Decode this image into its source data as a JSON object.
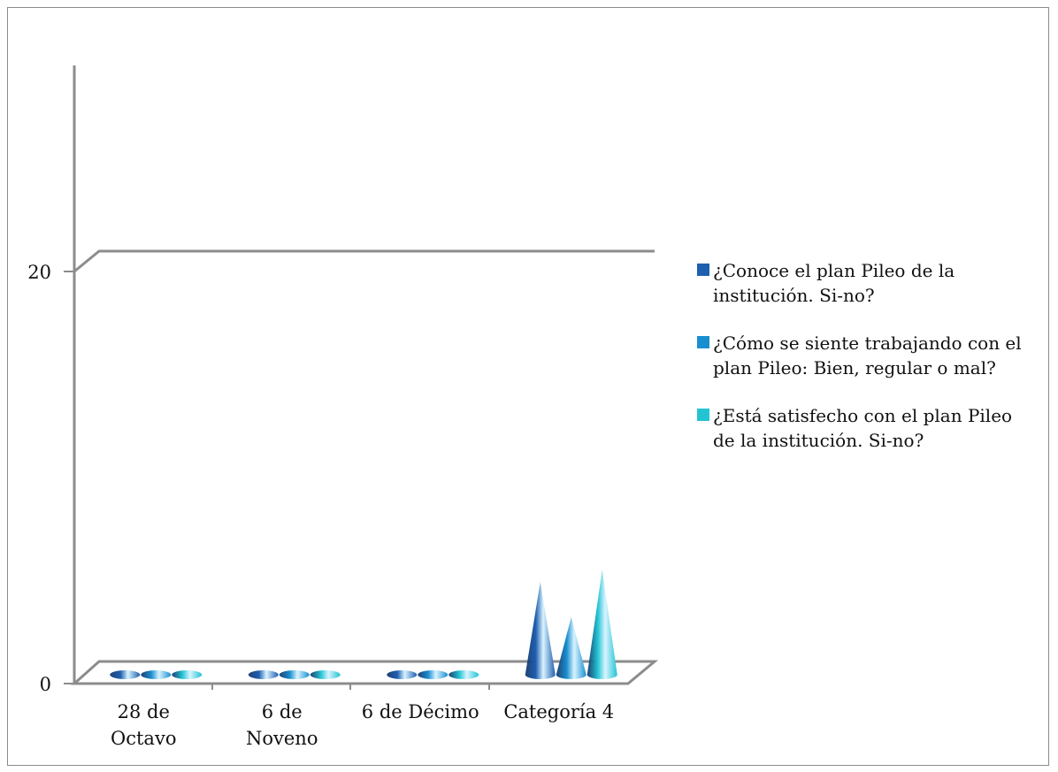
{
  "chart_data": {
    "type": "bar",
    "style": "3d-cone",
    "categories": [
      [
        "28 de",
        "Octavo"
      ],
      [
        "6 de",
        "Noveno"
      ],
      [
        "6 de Décimo"
      ],
      [
        "Categoría 4"
      ]
    ],
    "series": [
      {
        "name": "¿Conoce el plan Pileo  de la institución. Si-no?",
        "color": "#1f5fb0",
        "values": [
          0,
          0,
          0,
          4.5
        ]
      },
      {
        "name": "¿Cómo se siente trabajando con el plan Pileo: Bien, regular o mal?",
        "color": "#1a8fd0",
        "values": [
          0,
          0,
          0,
          2.8
        ]
      },
      {
        "name": "¿Está satisfecho con el plan Pileo de la institución. Si-no?",
        "color": "#22c4d4",
        "values": [
          0,
          0,
          0,
          5.1
        ]
      }
    ],
    "yticks": [
      0,
      20
    ],
    "ylim": [
      0,
      20
    ],
    "grid": true,
    "legend_position": "right"
  }
}
